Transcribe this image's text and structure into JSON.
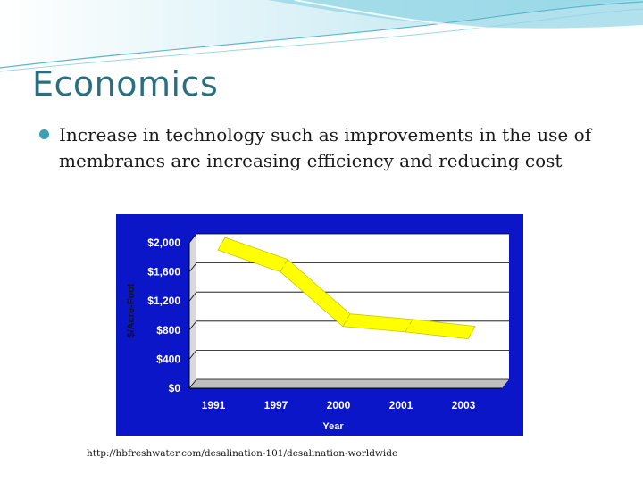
{
  "slide": {
    "title": "Economics",
    "bullet": "Increase in technology such as improvements in the use of membranes are increasing efficiency and reducing cost",
    "source": "http://hbfreshwater.com/desalination-101/desalination-worldwide"
  },
  "colors": {
    "title": "#2a6f80",
    "bullet": "#3aa0b4",
    "chart_background": "#0a16c8",
    "plot_area": "#ffffff",
    "series": "#ffff00",
    "chart_text": "#ffffff",
    "axis_text": "#141414"
  },
  "icons": {
    "bullet": "filled-circle-bullet-icon"
  },
  "chart_data": {
    "type": "line",
    "title": "",
    "xlabel": "Year",
    "ylabel": "$/Acre-Foot",
    "categories": [
      "1991",
      "1997",
      "2000",
      "2001",
      "2003"
    ],
    "series": [
      {
        "values": [
          1900,
          1600,
          850,
          775,
          680
        ]
      }
    ],
    "ylim": [
      0,
      2000
    ],
    "yticks": [
      0,
      400,
      800,
      1200,
      1600,
      2000
    ],
    "ytick_labels": [
      "$0",
      "$400",
      "$800",
      "$1,200",
      "$1,600",
      "$2,000"
    ],
    "grid": true,
    "legend": "none"
  }
}
